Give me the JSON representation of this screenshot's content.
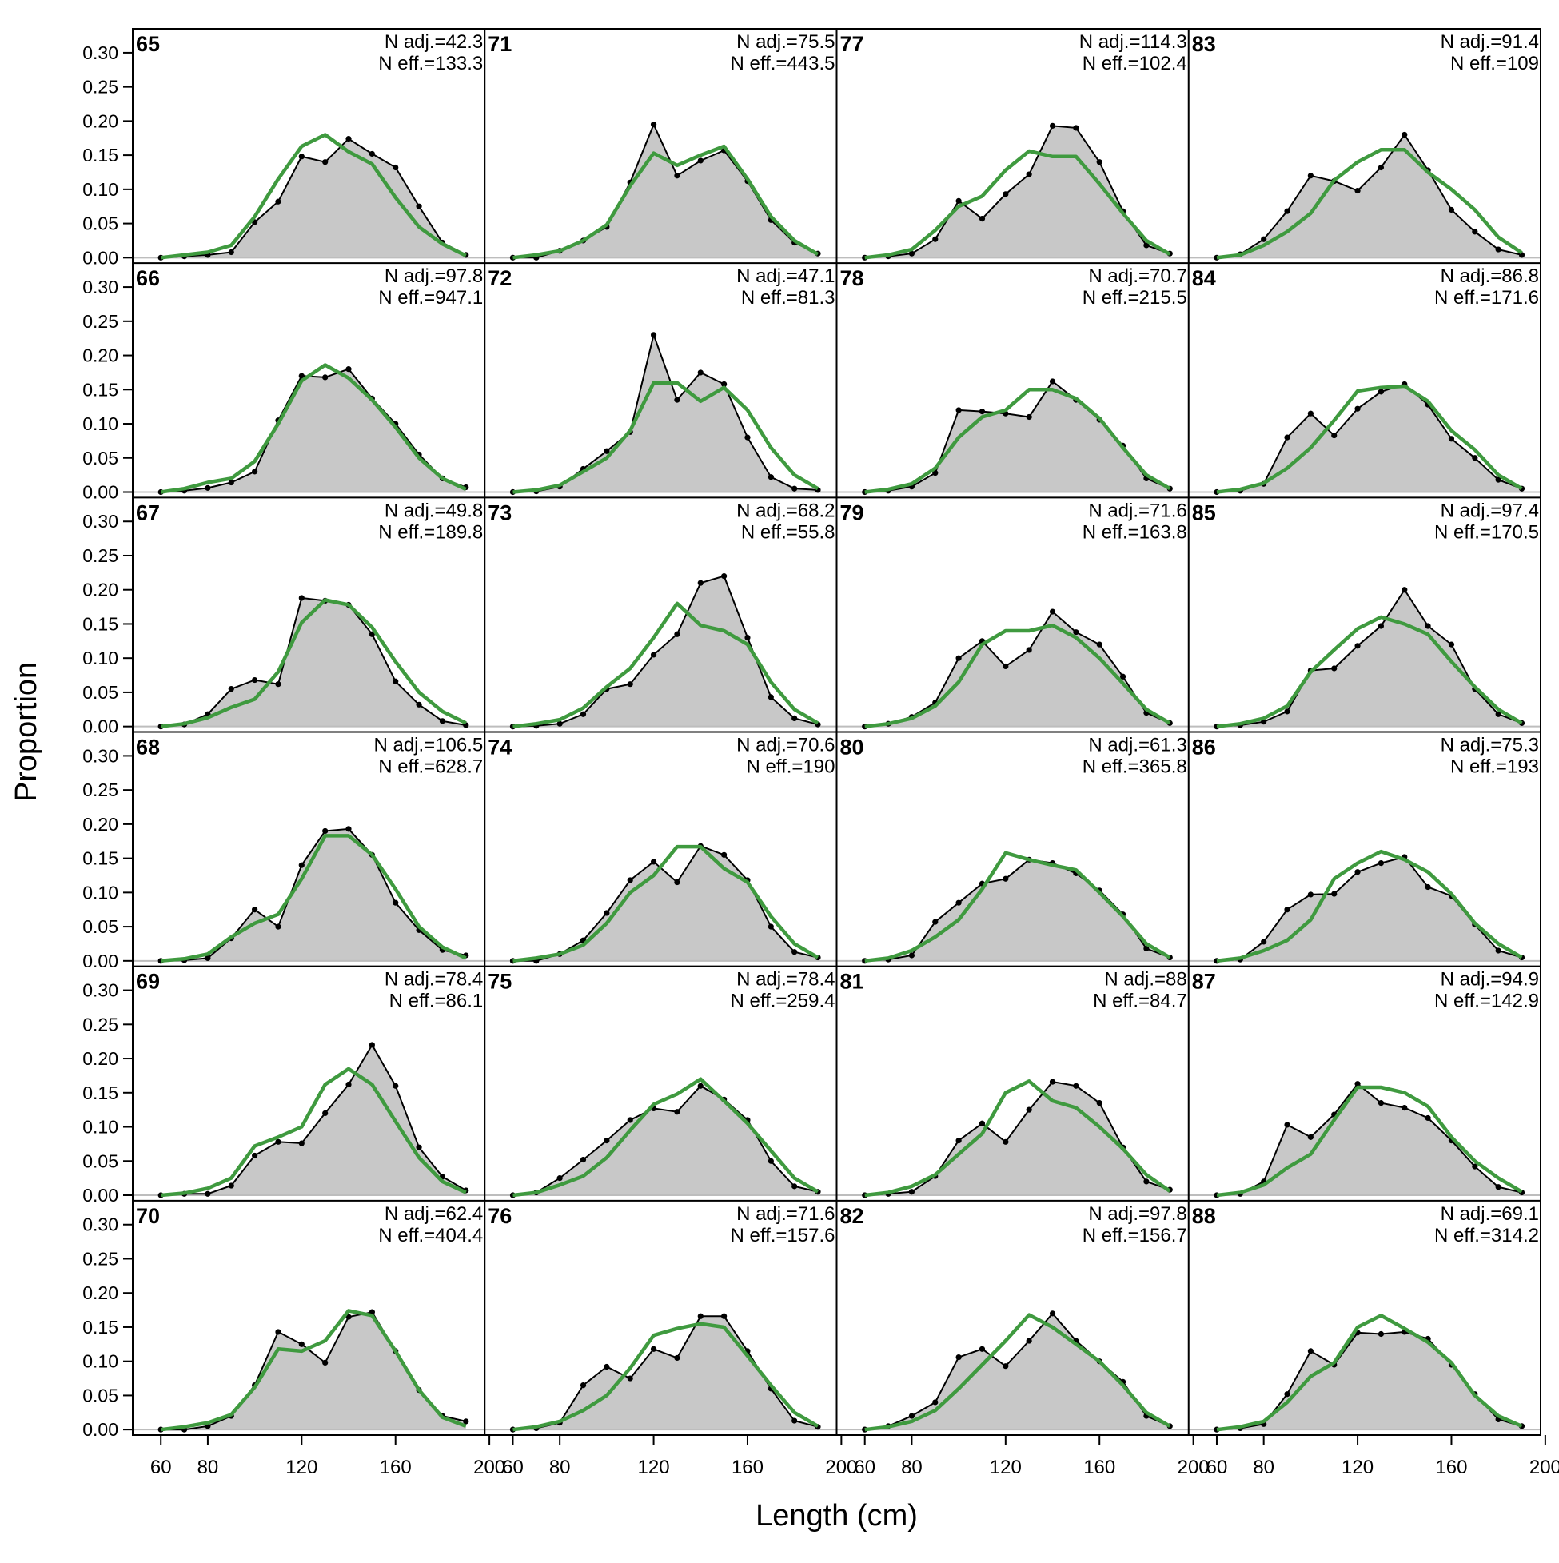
{
  "chart_data": {
    "type": "area",
    "xlabel": "Length (cm)",
    "ylabel": "Proportion",
    "xlim": [
      48,
      198
    ],
    "ylim": [
      -0.008,
      0.335
    ],
    "x_ticks": [
      "60",
      "80",
      "120",
      "160",
      "200"
    ],
    "x_tick_values": [
      60,
      80,
      120,
      160,
      200
    ],
    "y_ticks": [
      "0.00",
      "0.05",
      "0.10",
      "0.15",
      "0.20",
      "0.25",
      "0.30"
    ],
    "y_tick_values": [
      0,
      0.05,
      0.1,
      0.15,
      0.2,
      0.25,
      0.3
    ],
    "x": [
      60,
      70,
      80,
      90,
      100,
      110,
      120,
      130,
      140,
      150,
      160,
      170,
      180,
      190
    ],
    "layout": "6 rows x 4 columns, panels ordered down columns",
    "colors": {
      "observed_fill": "#c8c8c8",
      "observed_line": "#000000",
      "expected_line": "#3f9a3f",
      "zero_line": "#bdbdbd"
    },
    "panels": [
      {
        "label": "65",
        "n_adj": "N adj.=42.3",
        "n_eff": "N eff.=133.3",
        "observed": [
          0,
          0.002,
          0.004,
          0.008,
          0.052,
          0.082,
          0.148,
          0.14,
          0.174,
          0.152,
          0.132,
          0.075,
          0.022,
          0.004
        ],
        "expected": [
          0,
          0.004,
          0.008,
          0.018,
          0.06,
          0.115,
          0.163,
          0.18,
          0.155,
          0.137,
          0.088,
          0.045,
          0.02,
          0.003
        ]
      },
      {
        "label": "66",
        "n_adj": "N adj.=97.8",
        "n_eff": "N eff.=947.1",
        "observed": [
          0,
          0.002,
          0.006,
          0.014,
          0.03,
          0.105,
          0.17,
          0.168,
          0.18,
          0.137,
          0.1,
          0.055,
          0.02,
          0.007
        ],
        "expected": [
          0,
          0.005,
          0.014,
          0.02,
          0.045,
          0.1,
          0.163,
          0.186,
          0.167,
          0.135,
          0.095,
          0.05,
          0.02,
          0.004
        ]
      },
      {
        "label": "67",
        "n_adj": "N adj.=49.8",
        "n_eff": "N eff.=189.8",
        "observed": [
          0,
          0.003,
          0.018,
          0.055,
          0.068,
          0.062,
          0.188,
          0.184,
          0.178,
          0.135,
          0.066,
          0.032,
          0.008,
          0.002
        ],
        "expected": [
          0,
          0.004,
          0.013,
          0.028,
          0.04,
          0.08,
          0.152,
          0.185,
          0.178,
          0.145,
          0.095,
          0.05,
          0.022,
          0.005
        ]
      },
      {
        "label": "68",
        "n_adj": "N adj.=106.5",
        "n_eff": "N eff.=628.7",
        "observed": [
          0,
          0.001,
          0.004,
          0.033,
          0.075,
          0.05,
          0.14,
          0.19,
          0.193,
          0.155,
          0.085,
          0.045,
          0.016,
          0.008
        ],
        "expected": [
          0,
          0.003,
          0.01,
          0.035,
          0.055,
          0.068,
          0.12,
          0.183,
          0.183,
          0.155,
          0.105,
          0.05,
          0.02,
          0.004
        ]
      },
      {
        "label": "69",
        "n_adj": "N adj.=78.4",
        "n_eff": "N eff.=86.1",
        "observed": [
          0,
          0.002,
          0.002,
          0.014,
          0.058,
          0.078,
          0.076,
          0.12,
          0.162,
          0.22,
          0.16,
          0.07,
          0.027,
          0.007
        ],
        "expected": [
          0,
          0.003,
          0.01,
          0.025,
          0.072,
          0.085,
          0.1,
          0.162,
          0.185,
          0.162,
          0.108,
          0.055,
          0.02,
          0.004
        ]
      },
      {
        "label": "70",
        "n_adj": "N adj.=62.4",
        "n_eff": "N eff.=404.4",
        "observed": [
          0,
          0,
          0.005,
          0.02,
          0.065,
          0.143,
          0.125,
          0.098,
          0.165,
          0.172,
          0.115,
          0.058,
          0.02,
          0.012
        ],
        "expected": [
          0,
          0.004,
          0.01,
          0.022,
          0.062,
          0.118,
          0.115,
          0.13,
          0.174,
          0.167,
          0.115,
          0.058,
          0.018,
          0.005
        ]
      },
      {
        "label": "71",
        "n_adj": "N adj.=75.5",
        "n_eff": "N eff.=443.5",
        "observed": [
          0,
          0,
          0.01,
          0.025,
          0.045,
          0.11,
          0.195,
          0.12,
          0.142,
          0.157,
          0.112,
          0.055,
          0.022,
          0.006
        ],
        "expected": [
          0,
          0.004,
          0.01,
          0.025,
          0.048,
          0.105,
          0.153,
          0.135,
          0.15,
          0.163,
          0.115,
          0.06,
          0.025,
          0.005
        ]
      },
      {
        "label": "72",
        "n_adj": "N adj.=47.1",
        "n_eff": "N eff.=81.3",
        "observed": [
          0,
          0.001,
          0.008,
          0.034,
          0.06,
          0.088,
          0.23,
          0.135,
          0.175,
          0.158,
          0.08,
          0.022,
          0.005,
          0.003
        ],
        "expected": [
          0,
          0.003,
          0.01,
          0.03,
          0.05,
          0.09,
          0.16,
          0.16,
          0.133,
          0.153,
          0.12,
          0.065,
          0.025,
          0.005
        ]
      },
      {
        "label": "73",
        "n_adj": "N adj.=68.2",
        "n_eff": "N eff.=55.8",
        "observed": [
          0,
          0.001,
          0.004,
          0.018,
          0.055,
          0.062,
          0.105,
          0.135,
          0.21,
          0.22,
          0.13,
          0.043,
          0.012,
          0.003
        ],
        "expected": [
          0,
          0.004,
          0.01,
          0.027,
          0.058,
          0.085,
          0.13,
          0.18,
          0.148,
          0.14,
          0.12,
          0.065,
          0.025,
          0.005
        ]
      },
      {
        "label": "74",
        "n_adj": "N adj.=70.6",
        "n_eff": "N eff.=190",
        "observed": [
          0,
          0,
          0.01,
          0.03,
          0.07,
          0.118,
          0.145,
          0.115,
          0.168,
          0.155,
          0.118,
          0.05,
          0.013,
          0.005
        ],
        "expected": [
          0,
          0.004,
          0.01,
          0.023,
          0.055,
          0.1,
          0.125,
          0.167,
          0.167,
          0.135,
          0.115,
          0.065,
          0.025,
          0.005
        ]
      },
      {
        "label": "75",
        "n_adj": "N adj.=78.4",
        "n_eff": "N eff.=259.4",
        "observed": [
          0,
          0.004,
          0.025,
          0.052,
          0.08,
          0.11,
          0.127,
          0.122,
          0.16,
          0.14,
          0.11,
          0.05,
          0.013,
          0.005
        ],
        "expected": [
          0,
          0.004,
          0.015,
          0.028,
          0.055,
          0.095,
          0.133,
          0.148,
          0.17,
          0.138,
          0.105,
          0.065,
          0.025,
          0.005
        ]
      },
      {
        "label": "76",
        "n_adj": "N adj.=71.6",
        "n_eff": "N eff.=157.6",
        "observed": [
          0,
          0.002,
          0.01,
          0.065,
          0.092,
          0.075,
          0.118,
          0.105,
          0.166,
          0.166,
          0.115,
          0.06,
          0.013,
          0.004
        ],
        "expected": [
          0,
          0.004,
          0.012,
          0.028,
          0.05,
          0.09,
          0.138,
          0.148,
          0.155,
          0.15,
          0.108,
          0.065,
          0.025,
          0.005
        ]
      },
      {
        "label": "77",
        "n_adj": "N adj.=114.3",
        "n_eff": "N eff.=102.4",
        "observed": [
          0,
          0.002,
          0.006,
          0.027,
          0.083,
          0.057,
          0.093,
          0.122,
          0.193,
          0.19,
          0.14,
          0.068,
          0.018,
          0.006
        ],
        "expected": [
          0,
          0.004,
          0.012,
          0.04,
          0.075,
          0.09,
          0.128,
          0.156,
          0.148,
          0.148,
          0.108,
          0.065,
          0.025,
          0.005
        ]
      },
      {
        "label": "78",
        "n_adj": "N adj.=70.7",
        "n_eff": "N eff.=215.5",
        "observed": [
          0,
          0.002,
          0.008,
          0.028,
          0.12,
          0.118,
          0.115,
          0.11,
          0.162,
          0.135,
          0.106,
          0.068,
          0.02,
          0.005
        ],
        "expected": [
          0,
          0.004,
          0.012,
          0.035,
          0.08,
          0.11,
          0.12,
          0.15,
          0.15,
          0.137,
          0.108,
          0.065,
          0.025,
          0.005
        ]
      },
      {
        "label": "79",
        "n_adj": "N adj.=71.6",
        "n_eff": "N eff.=163.8",
        "observed": [
          0,
          0.004,
          0.014,
          0.035,
          0.1,
          0.125,
          0.088,
          0.112,
          0.168,
          0.138,
          0.12,
          0.073,
          0.02,
          0.005
        ],
        "expected": [
          0,
          0.004,
          0.012,
          0.03,
          0.065,
          0.12,
          0.14,
          0.14,
          0.148,
          0.13,
          0.1,
          0.063,
          0.025,
          0.005
        ]
      },
      {
        "label": "80",
        "n_adj": "N adj.=61.3",
        "n_eff": "N eff.=365.8",
        "observed": [
          0,
          0.002,
          0.008,
          0.057,
          0.085,
          0.113,
          0.12,
          0.148,
          0.143,
          0.128,
          0.103,
          0.068,
          0.018,
          0.005
        ],
        "expected": [
          0,
          0.004,
          0.015,
          0.035,
          0.06,
          0.105,
          0.158,
          0.148,
          0.14,
          0.133,
          0.1,
          0.065,
          0.025,
          0.005
        ]
      },
      {
        "label": "81",
        "n_adj": "N adj.=88",
        "n_eff": "N eff.=84.7",
        "observed": [
          0,
          0.002,
          0.005,
          0.028,
          0.08,
          0.105,
          0.078,
          0.125,
          0.166,
          0.16,
          0.135,
          0.07,
          0.02,
          0.008
        ],
        "expected": [
          0,
          0.004,
          0.013,
          0.03,
          0.06,
          0.09,
          0.15,
          0.167,
          0.138,
          0.128,
          0.1,
          0.068,
          0.03,
          0.006
        ]
      },
      {
        "label": "82",
        "n_adj": "N adj.=97.8",
        "n_eff": "N eff.=156.7",
        "observed": [
          0,
          0.005,
          0.02,
          0.04,
          0.106,
          0.118,
          0.093,
          0.13,
          0.17,
          0.13,
          0.1,
          0.07,
          0.02,
          0.005
        ],
        "expected": [
          0,
          0.004,
          0.012,
          0.028,
          0.06,
          0.095,
          0.13,
          0.168,
          0.15,
          0.125,
          0.1,
          0.065,
          0.025,
          0.005
        ]
      },
      {
        "label": "83",
        "n_adj": "N adj.=91.4",
        "n_eff": "N eff.=109",
        "observed": [
          0,
          0.005,
          0.027,
          0.068,
          0.12,
          0.112,
          0.098,
          0.132,
          0.18,
          0.128,
          0.07,
          0.038,
          0.012,
          0.004
        ],
        "expected": [
          0,
          0.004,
          0.018,
          0.038,
          0.065,
          0.113,
          0.14,
          0.158,
          0.158,
          0.125,
          0.1,
          0.07,
          0.03,
          0.007
        ]
      },
      {
        "label": "84",
        "n_adj": "N adj.=86.8",
        "n_eff": "N eff.=171.6",
        "observed": [
          0,
          0.002,
          0.012,
          0.08,
          0.115,
          0.083,
          0.122,
          0.147,
          0.158,
          0.128,
          0.078,
          0.05,
          0.018,
          0.005
        ],
        "expected": [
          0,
          0.004,
          0.013,
          0.035,
          0.065,
          0.105,
          0.148,
          0.153,
          0.155,
          0.133,
          0.09,
          0.062,
          0.025,
          0.005
        ]
      },
      {
        "label": "85",
        "n_adj": "N adj.=97.4",
        "n_eff": "N eff.=170.5",
        "observed": [
          0,
          0.002,
          0.007,
          0.022,
          0.082,
          0.085,
          0.118,
          0.147,
          0.2,
          0.147,
          0.12,
          0.055,
          0.018,
          0.005
        ],
        "expected": [
          0,
          0.004,
          0.012,
          0.03,
          0.08,
          0.112,
          0.143,
          0.16,
          0.15,
          0.135,
          0.095,
          0.058,
          0.025,
          0.005
        ]
      },
      {
        "label": "86",
        "n_adj": "N adj.=75.3",
        "n_eff": "N eff.=193",
        "observed": [
          0,
          0.002,
          0.028,
          0.075,
          0.097,
          0.098,
          0.13,
          0.143,
          0.152,
          0.108,
          0.095,
          0.053,
          0.015,
          0.005
        ],
        "expected": [
          0,
          0.004,
          0.015,
          0.03,
          0.06,
          0.12,
          0.143,
          0.16,
          0.148,
          0.13,
          0.098,
          0.055,
          0.025,
          0.005
        ]
      },
      {
        "label": "87",
        "n_adj": "N adj.=94.9",
        "n_eff": "N eff.=142.9",
        "observed": [
          0,
          0.002,
          0.02,
          0.103,
          0.085,
          0.118,
          0.163,
          0.135,
          0.128,
          0.113,
          0.08,
          0.042,
          0.012,
          0.004
        ],
        "expected": [
          0,
          0.004,
          0.015,
          0.04,
          0.06,
          0.11,
          0.158,
          0.158,
          0.15,
          0.13,
          0.085,
          0.05,
          0.025,
          0.005
        ]
      },
      {
        "label": "88",
        "n_adj": "N adj.=69.1",
        "n_eff": "N eff.=314.2",
        "observed": [
          0,
          0.002,
          0.008,
          0.052,
          0.115,
          0.095,
          0.142,
          0.14,
          0.143,
          0.133,
          0.095,
          0.052,
          0.015,
          0.005
        ],
        "expected": [
          0,
          0.004,
          0.012,
          0.04,
          0.078,
          0.098,
          0.15,
          0.167,
          0.148,
          0.128,
          0.098,
          0.05,
          0.02,
          0.005
        ]
      }
    ]
  }
}
